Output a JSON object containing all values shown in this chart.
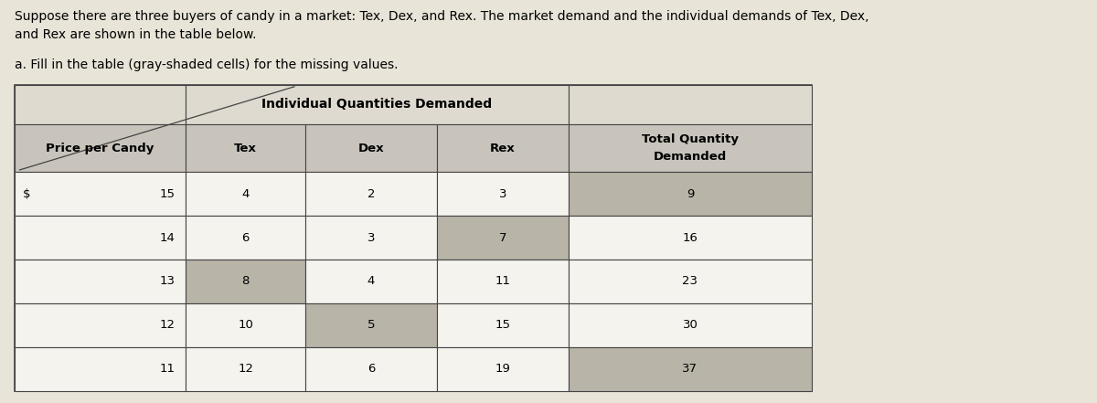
{
  "title_line1": "Suppose there are three buyers of candy in a market: Tex, Dex, and Rex. The market demand and the individual demands of Tex, Dex,",
  "title_line2": "and Rex are shown in the table below.",
  "subtitle": "a. Fill in the table (gray-shaded cells) for the missing values.",
  "col_group_header": "Individual Quantities Demanded",
  "col_headers": [
    "Price per Candy",
    "Tex",
    "Dex",
    "Rex",
    "Total Quantity\nDemanded"
  ],
  "price_symbol": "$",
  "rows": [
    {
      "price": "15",
      "tex": "4",
      "dex": "2",
      "rex": "3",
      "total": "9",
      "gray": [
        "total"
      ]
    },
    {
      "price": "14",
      "tex": "6",
      "dex": "3",
      "rex": "7",
      "total": "16",
      "gray": [
        "rex"
      ]
    },
    {
      "price": "13",
      "tex": "8",
      "dex": "4",
      "rex": "11",
      "total": "23",
      "gray": [
        "tex"
      ]
    },
    {
      "price": "12",
      "tex": "10",
      "dex": "5",
      "rex": "15",
      "total": "30",
      "gray": [
        "dex"
      ]
    },
    {
      "price": "11",
      "tex": "12",
      "dex": "6",
      "rex": "19",
      "total": "37",
      "gray": [
        "total"
      ]
    }
  ],
  "bg_color": "#e8e4d8",
  "table_bg": "#dedad0",
  "white_cell": "#f5f3ee",
  "gray_cell_color": "#b8b4a8",
  "col_header_bg": "#c8c4bc",
  "border_color": "#444444",
  "text_color": "#000000",
  "font_size_title": 10.0,
  "font_size_subtitle": 10.0,
  "font_size_table": 9.5
}
